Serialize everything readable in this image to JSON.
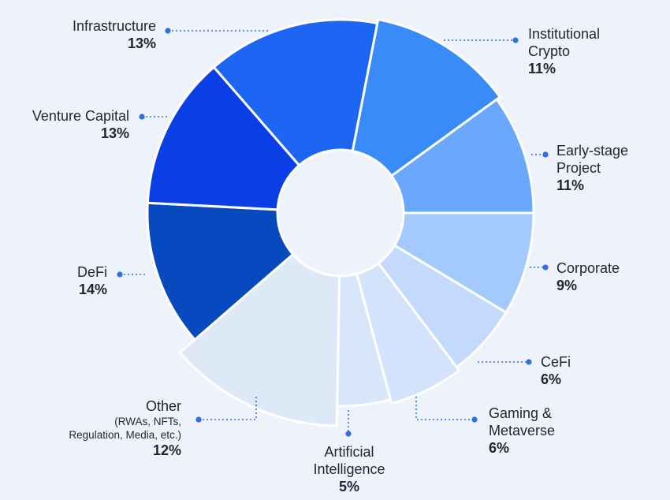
{
  "chart_data": {
    "type": "pie",
    "variant": "polar-area-donut",
    "segments": [
      {
        "label": "Institutional Crypto",
        "value": 11,
        "value_label": "11%",
        "color": "#3a8bfa"
      },
      {
        "label": "Early-stage Project",
        "value": 11,
        "value_label": "11%",
        "color": "#6aa8fb"
      },
      {
        "label": "Corporate",
        "value": 9,
        "value_label": "9%",
        "color": "#a4c9fd"
      },
      {
        "label": "CeFi",
        "value": 6,
        "value_label": "6%",
        "color": "#c3dafd"
      },
      {
        "label": "Gaming & Metaverse",
        "value": 6,
        "value_label": "6%",
        "color": "#d2e3fb"
      },
      {
        "label": "Artificial Intelligence",
        "value": 5,
        "value_label": "5%",
        "color": "#d8e6fa"
      },
      {
        "label": "Other",
        "sublabel": "(RWAs, NFTs, Regulation, Media, etc.)",
        "value": 12,
        "value_label": "12%",
        "color": "#dee9f8"
      },
      {
        "label": "DeFi",
        "value": 14,
        "value_label": "14%",
        "color": "#074abf"
      },
      {
        "label": "Venture Capital",
        "value": 13,
        "value_label": "13%",
        "color": "#0b3fe6"
      },
      {
        "label": "Infrastructure",
        "value": 13,
        "value_label": "13%",
        "color": "#1d66f3"
      }
    ]
  },
  "labels": {
    "infrastructure": {
      "name": "Infrastructure",
      "pct": "13%"
    },
    "venture": {
      "name": "Venture Capital",
      "pct": "13%"
    },
    "defi": {
      "name": "DeFi",
      "pct": "14%"
    },
    "other": {
      "name": "Other",
      "sub1": "(RWAs, NFTs,",
      "sub2": "Regulation, Media, etc.)",
      "pct": "12%"
    },
    "ai": {
      "name1": "Artificial",
      "name2": "Intelligence",
      "pct": "5%"
    },
    "gaming": {
      "name1": "Gaming &",
      "name2": "Metaverse",
      "pct": "6%"
    },
    "cefi": {
      "name": "CeFi",
      "pct": "6%"
    },
    "corporate": {
      "name": "Corporate",
      "pct": "9%"
    },
    "early": {
      "name1": "Early-stage",
      "name2": "Project",
      "pct": "11%"
    },
    "institutional": {
      "name1": "Institutional",
      "name2": "Crypto",
      "pct": "11%"
    }
  },
  "colors": {
    "leader": "#2f6fe0",
    "background": "#eef3fb",
    "hole": "#eef3fb"
  }
}
